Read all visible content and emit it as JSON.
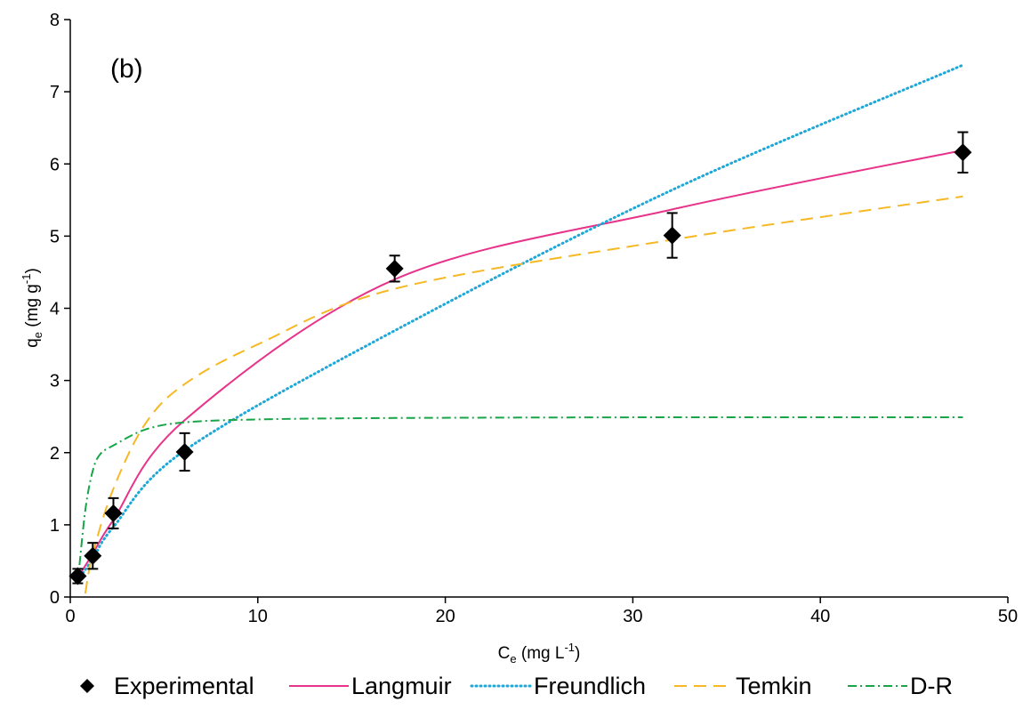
{
  "chart_data": {
    "type": "scatter",
    "panel_label": "(b)",
    "xlabel": {
      "main": "C",
      "sub": "e",
      "units_pre": " (mg L",
      "sup": "-1",
      "units_post": ")"
    },
    "ylabel": {
      "main": "q",
      "sub": "e",
      "units_pre": " (mg g",
      "sup": "-1",
      "units_post": ")"
    },
    "xlim": [
      0,
      50
    ],
    "ylim": [
      0,
      8
    ],
    "xticks": [
      0,
      10,
      20,
      30,
      40,
      50
    ],
    "yticks": [
      0,
      1,
      2,
      3,
      4,
      5,
      6,
      7,
      8
    ],
    "grid": false,
    "legend_position": "bottom",
    "experimental": {
      "name": "Experimental",
      "color": "#000000",
      "x": [
        0.4,
        1.2,
        2.3,
        6.1,
        17.3,
        32.1,
        47.6
      ],
      "y": [
        0.29,
        0.57,
        1.16,
        2.01,
        4.55,
        5.01,
        6.16
      ],
      "error": [
        0.1,
        0.18,
        0.21,
        0.26,
        0.18,
        0.31,
        0.28
      ]
    },
    "series": [
      {
        "name": "Langmuir",
        "color": "#e8338a",
        "dash": "solid",
        "x": [
          0.4,
          1.2,
          2.3,
          6.1,
          17.3,
          32.1,
          47.6
        ],
        "y": [
          0.27,
          0.6,
          1.07,
          2.45,
          4.4,
          5.37,
          6.19
        ]
      },
      {
        "name": "Freundlich",
        "color": "#1fa7d8",
        "dash": "dot",
        "x": [
          0.4,
          1.2,
          2.3,
          6.1,
          17.3,
          32.1,
          47.6
        ],
        "y": [
          0.23,
          0.53,
          0.97,
          2.03,
          3.69,
          5.64,
          7.37
        ]
      },
      {
        "name": "Temkin",
        "color": "#f6b824",
        "dash": "dash",
        "x": [
          0.8,
          1.2,
          2.3,
          4.0,
          6.1,
          10,
          17.3,
          32.1,
          47.6
        ],
        "y": [
          0.05,
          0.6,
          1.5,
          2.4,
          2.95,
          3.5,
          4.27,
          4.95,
          5.55
        ]
      },
      {
        "name": "D-R",
        "color": "#17a547",
        "dash": "dashdot",
        "x": [
          0.4,
          0.8,
          1.2,
          1.6,
          2.3,
          4,
          6.1,
          10,
          17.3,
          32.1,
          47.6
        ],
        "y": [
          0.2,
          1.2,
          1.75,
          1.98,
          2.1,
          2.32,
          2.42,
          2.46,
          2.48,
          2.49,
          2.49
        ]
      }
    ]
  }
}
